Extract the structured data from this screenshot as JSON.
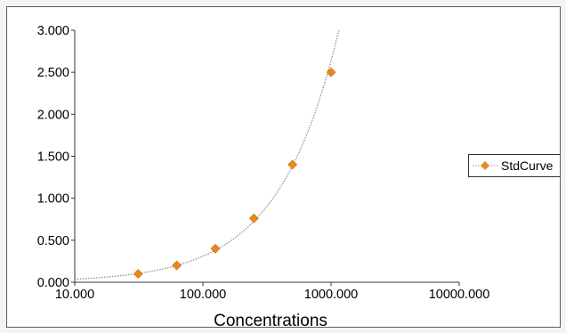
{
  "chart_data": {
    "type": "scatter",
    "title": "",
    "xlabel": "Concentrations",
    "ylabel": "",
    "xscale": "log",
    "xlim": [
      10,
      10000
    ],
    "ylim": [
      0,
      3
    ],
    "x_ticks": [
      "10.000",
      "100.000",
      "1000.000",
      "10000.000"
    ],
    "y_ticks": [
      "0.000",
      "0.500",
      "1.000",
      "1.500",
      "2.000",
      "2.500",
      "3.000"
    ],
    "grid": false,
    "legend_position": "right",
    "series": [
      {
        "name": "StdCurve",
        "marker": "diamond",
        "color": "#e8891f",
        "x": [
          31.25,
          62.5,
          125,
          250,
          500,
          1000
        ],
        "y": [
          0.1,
          0.2,
          0.4,
          0.76,
          1.4,
          2.5
        ]
      }
    ],
    "fit_line": {
      "style": "dotted",
      "color": "#8a8a8a",
      "type": "power",
      "x_range": [
        10,
        1250
      ]
    }
  }
}
